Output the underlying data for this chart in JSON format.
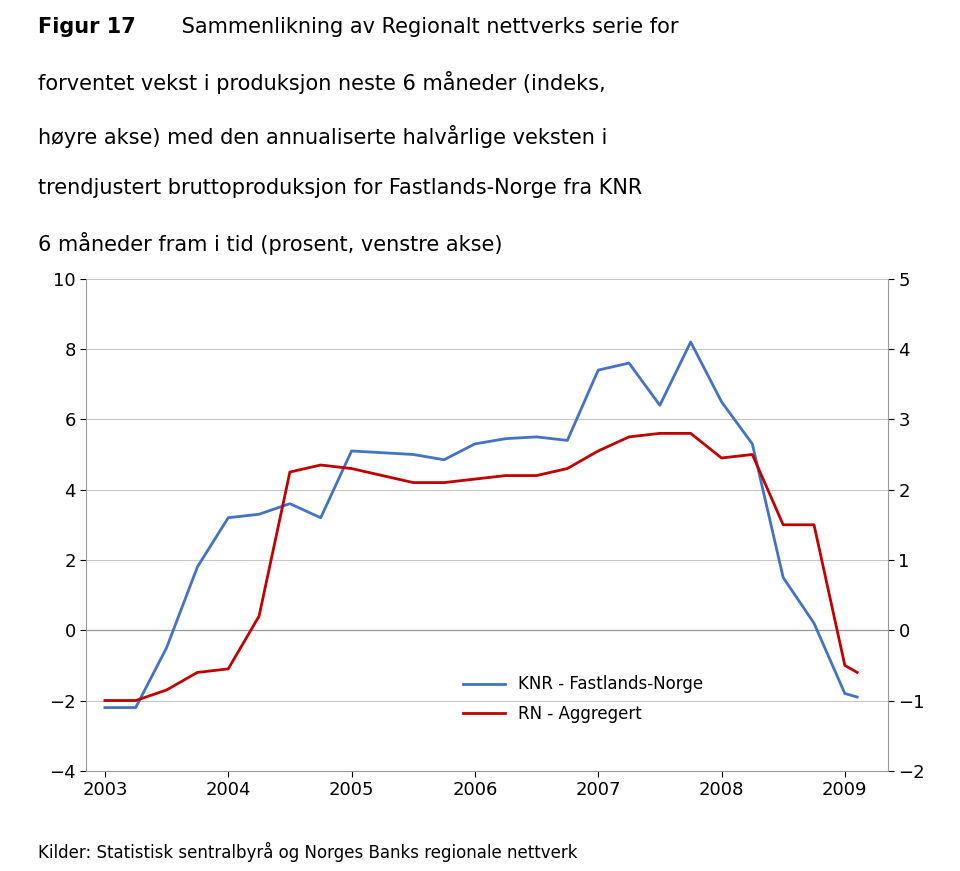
{
  "title_bold": "Figur 17",
  "title_rest": " Sammenlikning av Regionalt nettverks serie for\nforventet vekst i produksjon neste 6 måneder (indeks,\nhøyre akse) med den annualiserte halvårlige veksten i\ntrendjustert bruttoproduksjon for Fastlands-Norge fra KNR\n6 måneder fram i tid (prosent, venstre akse)",
  "source_text": "Kilder: Statistisk sentralbyrå og Norges Banks regionale nettverk",
  "knr_x": [
    2003.0,
    2003.25,
    2003.5,
    2003.75,
    2004.0,
    2004.25,
    2004.5,
    2004.75,
    2005.0,
    2005.25,
    2005.5,
    2005.75,
    2006.0,
    2006.25,
    2006.5,
    2006.75,
    2007.0,
    2007.25,
    2007.5,
    2007.75,
    2008.0,
    2008.25,
    2008.5,
    2008.75,
    2009.0,
    2009.1
  ],
  "knr_y": [
    -2.2,
    -2.2,
    -0.5,
    1.8,
    3.2,
    3.3,
    3.6,
    3.2,
    5.1,
    5.05,
    5.0,
    4.85,
    5.3,
    5.45,
    5.5,
    5.4,
    7.4,
    7.6,
    6.4,
    8.2,
    6.5,
    5.3,
    1.5,
    0.2,
    -1.8,
    -1.9
  ],
  "rn_x": [
    2003.0,
    2003.25,
    2003.5,
    2003.75,
    2004.0,
    2004.25,
    2004.5,
    2004.75,
    2005.0,
    2005.25,
    2005.5,
    2005.75,
    2006.0,
    2006.25,
    2006.5,
    2006.75,
    2007.0,
    2007.25,
    2007.5,
    2007.75,
    2008.0,
    2008.25,
    2008.5,
    2008.75,
    2009.0,
    2009.1
  ],
  "rn_y_right": [
    -1.0,
    -1.0,
    -0.85,
    -0.6,
    -0.55,
    0.2,
    2.25,
    2.35,
    2.3,
    2.2,
    2.1,
    2.1,
    2.15,
    2.2,
    2.2,
    2.3,
    2.55,
    2.75,
    2.8,
    2.8,
    2.45,
    2.5,
    1.5,
    1.5,
    -0.5,
    -0.6
  ],
  "knr_color": "#4472C4",
  "rn_color": "#C00000",
  "left_ylim": [
    -4,
    10
  ],
  "left_yticks": [
    -4,
    -2,
    0,
    2,
    4,
    6,
    8,
    10
  ],
  "right_ylim": [
    -2,
    5
  ],
  "right_yticks": [
    -2,
    -1,
    0,
    1,
    2,
    3,
    4,
    5
  ],
  "xlim": [
    2002.85,
    2009.35
  ],
  "xticks": [
    2003,
    2004,
    2005,
    2006,
    2007,
    2008,
    2009
  ],
  "legend_knr": "KNR - Fastlands-Norge",
  "legend_rn": "RN - Aggregert",
  "line_width": 2.0,
  "bg_color": "#ffffff",
  "grid_color": "#bbbbbb",
  "zero_line_color": "#999999",
  "title_fontsize": 15,
  "tick_fontsize": 13,
  "source_fontsize": 12
}
